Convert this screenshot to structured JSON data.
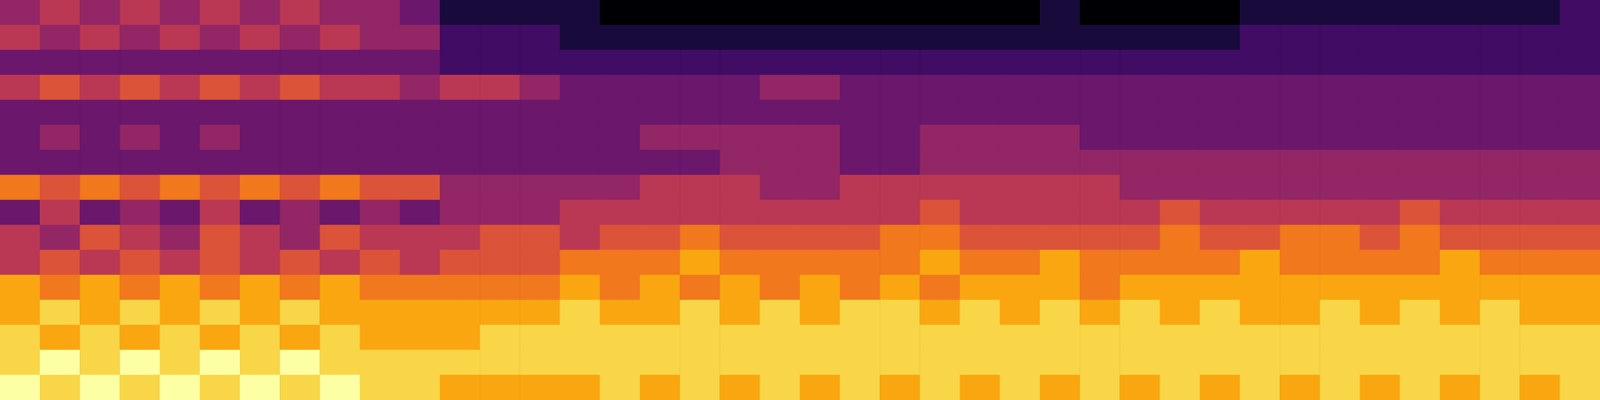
{
  "chart_data": {
    "type": "heatmap",
    "tick_labels": false,
    "zlim": [
      0,
      10
    ],
    "values": [
      [
        4,
        5,
        4,
        5,
        4,
        5,
        4,
        5,
        4,
        4,
        3,
        1,
        1,
        1,
        1,
        0,
        0,
        0,
        0,
        0,
        0,
        0,
        0,
        0,
        0,
        0,
        1,
        0,
        0,
        0,
        0,
        1,
        1,
        1,
        1,
        1,
        1,
        1,
        1,
        2
      ],
      [
        5,
        4,
        5,
        4,
        5,
        4,
        5,
        4,
        5,
        4,
        4,
        2,
        2,
        2,
        1,
        1,
        1,
        1,
        1,
        1,
        1,
        1,
        1,
        1,
        1,
        1,
        1,
        1,
        1,
        1,
        1,
        2,
        2,
        2,
        2,
        2,
        2,
        2,
        2,
        2
      ],
      [
        3,
        3,
        3,
        3,
        3,
        3,
        3,
        3,
        3,
        3,
        3,
        2,
        2,
        2,
        2,
        2,
        2,
        2,
        2,
        2,
        2,
        2,
        2,
        2,
        2,
        2,
        2,
        2,
        2,
        2,
        2,
        2,
        2,
        2,
        2,
        2,
        2,
        2,
        2,
        2
      ],
      [
        5,
        6,
        5,
        6,
        5,
        6,
        5,
        6,
        5,
        5,
        4,
        5,
        5,
        4,
        3,
        3,
        3,
        3,
        3,
        4,
        4,
        3,
        3,
        3,
        3,
        3,
        3,
        3,
        3,
        3,
        3,
        3,
        3,
        3,
        3,
        3,
        3,
        3,
        3,
        3
      ],
      [
        3,
        3,
        3,
        3,
        3,
        3,
        3,
        3,
        3,
        3,
        3,
        3,
        3,
        3,
        3,
        3,
        3,
        3,
        3,
        3,
        3,
        3,
        3,
        3,
        3,
        3,
        3,
        3,
        3,
        3,
        3,
        3,
        3,
        3,
        3,
        3,
        3,
        3,
        3,
        3
      ],
      [
        3,
        4,
        3,
        4,
        3,
        4,
        3,
        3,
        3,
        3,
        3,
        3,
        3,
        3,
        3,
        3,
        4,
        4,
        4,
        4,
        4,
        3,
        3,
        4,
        4,
        4,
        4,
        3,
        3,
        3,
        3,
        3,
        3,
        3,
        3,
        3,
        3,
        3,
        3,
        3
      ],
      [
        3,
        3,
        3,
        3,
        3,
        3,
        3,
        3,
        3,
        3,
        3,
        3,
        3,
        3,
        3,
        3,
        3,
        3,
        4,
        4,
        4,
        3,
        3,
        4,
        4,
        4,
        4,
        4,
        4,
        4,
        4,
        4,
        4,
        4,
        4,
        4,
        4,
        4,
        4,
        4
      ],
      [
        7,
        6,
        7,
        6,
        7,
        6,
        7,
        6,
        7,
        6,
        6,
        4,
        4,
        4,
        4,
        4,
        5,
        5,
        5,
        4,
        4,
        5,
        5,
        5,
        5,
        5,
        5,
        5,
        4,
        4,
        4,
        4,
        4,
        4,
        4,
        4,
        4,
        4,
        4,
        4
      ],
      [
        3,
        5,
        3,
        4,
        3,
        5,
        3,
        4,
        3,
        4,
        3,
        4,
        4,
        4,
        5,
        5,
        5,
        5,
        5,
        5,
        5,
        5,
        5,
        6,
        5,
        5,
        5,
        5,
        5,
        6,
        5,
        5,
        5,
        5,
        5,
        6,
        5,
        5,
        5,
        5
      ],
      [
        5,
        4,
        6,
        5,
        4,
        6,
        5,
        4,
        6,
        5,
        5,
        5,
        6,
        6,
        5,
        6,
        6,
        7,
        6,
        6,
        6,
        6,
        7,
        7,
        6,
        6,
        6,
        6,
        6,
        7,
        6,
        6,
        7,
        7,
        6,
        7,
        6,
        6,
        6,
        6
      ],
      [
        5,
        6,
        5,
        6,
        5,
        6,
        5,
        6,
        5,
        6,
        5,
        6,
        6,
        6,
        7,
        7,
        7,
        8,
        7,
        7,
        7,
        7,
        7,
        8,
        7,
        7,
        8,
        7,
        7,
        7,
        7,
        8,
        7,
        7,
        7,
        7,
        8,
        7,
        7,
        7
      ],
      [
        8,
        7,
        8,
        7,
        8,
        7,
        8,
        7,
        8,
        7,
        7,
        7,
        7,
        7,
        8,
        7,
        8,
        7,
        8,
        7,
        8,
        7,
        8,
        7,
        8,
        8,
        8,
        7,
        8,
        8,
        8,
        8,
        8,
        8,
        8,
        8,
        8,
        8,
        8,
        8
      ],
      [
        8,
        9,
        8,
        9,
        8,
        9,
        8,
        9,
        8,
        8,
        8,
        8,
        8,
        8,
        9,
        8,
        8,
        9,
        8,
        9,
        8,
        9,
        9,
        8,
        9,
        8,
        9,
        8,
        9,
        8,
        9,
        8,
        8,
        9,
        8,
        9,
        8,
        9,
        8,
        8
      ],
      [
        9,
        8,
        9,
        8,
        9,
        8,
        9,
        8,
        9,
        8,
        8,
        8,
        9,
        9,
        9,
        9,
        9,
        9,
        9,
        9,
        9,
        9,
        9,
        9,
        9,
        9,
        9,
        9,
        9,
        9,
        9,
        9,
        9,
        9,
        9,
        9,
        9,
        9,
        9,
        9
      ],
      [
        9,
        10,
        9,
        10,
        9,
        10,
        9,
        10,
        9,
        9,
        9,
        9,
        9,
        9,
        9,
        9,
        9,
        9,
        9,
        9,
        9,
        9,
        9,
        9,
        9,
        9,
        9,
        9,
        9,
        9,
        9,
        9,
        9,
        9,
        9,
        9,
        9,
        9,
        9,
        9
      ],
      [
        10,
        9,
        10,
        9,
        10,
        9,
        10,
        9,
        10,
        9,
        9,
        8,
        8,
        8,
        8,
        9,
        8,
        9,
        8,
        9,
        8,
        9,
        8,
        9,
        8,
        9,
        8,
        9,
        8,
        9,
        8,
        9,
        8,
        9,
        8,
        9,
        8,
        9,
        8,
        9
      ]
    ]
  }
}
